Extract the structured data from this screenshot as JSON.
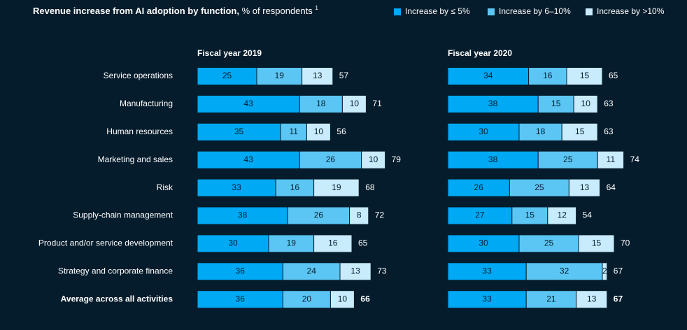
{
  "title": "Revenue increase from AI adoption by function,",
  "title_rest": "% of respondents",
  "footnote_mark": "1",
  "categories": [
    "Service operations",
    "Manufacturing",
    "Human resources",
    "Marketing and sales",
    "Risk",
    "Supply-chain management",
    "Product and/or service development",
    "Strategy and corporate finance",
    "Average across all activities"
  ],
  "chart_data": [
    {
      "type": "bar",
      "orientation": "horizontal",
      "stacked": true,
      "title": "Fiscal year 2019",
      "xlim": [
        0,
        100
      ],
      "series": [
        {
          "name": "Increase by ≤ 5%",
          "color": "#00a9f4",
          "values": [
            25,
            43,
            35,
            43,
            33,
            38,
            30,
            36,
            36
          ]
        },
        {
          "name": "Increase by 6–10%",
          "color": "#5bc6f3",
          "values": [
            19,
            18,
            11,
            26,
            16,
            26,
            19,
            24,
            20
          ]
        },
        {
          "name": "Increase by >10%",
          "color": "#c8ecfb",
          "values": [
            13,
            10,
            10,
            10,
            19,
            8,
            16,
            13,
            10
          ]
        }
      ],
      "totals": [
        57,
        71,
        56,
        79,
        68,
        72,
        65,
        73,
        66
      ]
    },
    {
      "type": "bar",
      "orientation": "horizontal",
      "stacked": true,
      "title": "Fiscal year 2020",
      "xlim": [
        0,
        100
      ],
      "series": [
        {
          "name": "Increase by ≤ 5%",
          "color": "#00a9f4",
          "values": [
            34,
            38,
            30,
            38,
            26,
            27,
            30,
            33,
            33
          ]
        },
        {
          "name": "Increase by 6–10%",
          "color": "#5bc6f3",
          "values": [
            16,
            15,
            18,
            25,
            25,
            15,
            25,
            32,
            21
          ]
        },
        {
          "name": "Increase by >10%",
          "color": "#c8ecfb",
          "values": [
            15,
            10,
            15,
            11,
            13,
            12,
            15,
            2,
            13
          ]
        }
      ],
      "totals": [
        65,
        63,
        63,
        74,
        64,
        54,
        70,
        67,
        67
      ]
    }
  ]
}
